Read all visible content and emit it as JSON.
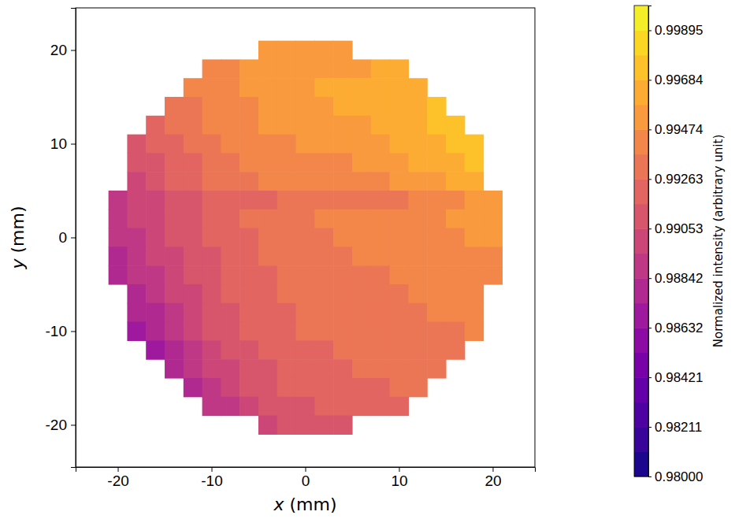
{
  "chart_data": {
    "type": "heatmap",
    "xlabel": "x (mm)",
    "ylabel": "y (mm)",
    "xlim": [
      -24.5,
      24.5
    ],
    "ylim": [
      -24.5,
      24.5
    ],
    "xticks": [
      -20,
      -10,
      0,
      10,
      20
    ],
    "yticks": [
      -20,
      -10,
      0,
      10,
      20
    ],
    "x": [
      -20,
      -18,
      -16,
      -14,
      -12,
      -10,
      -8,
      -6,
      -4,
      -2,
      0,
      2,
      4,
      6,
      8,
      10,
      12,
      14,
      16,
      18,
      20
    ],
    "y": [
      20,
      18,
      16,
      14,
      12,
      10,
      8,
      6,
      4,
      2,
      0,
      -2,
      -4,
      -6,
      -8,
      -10,
      -12,
      -14,
      -16,
      -18,
      -20
    ],
    "z": [
      [
        null,
        null,
        null,
        null,
        null,
        null,
        null,
        null,
        0.995,
        0.9952,
        0.9953,
        0.9954,
        0.9955,
        null,
        null,
        null,
        null,
        null,
        null,
        null,
        null
      ],
      [
        null,
        null,
        null,
        null,
        null,
        0.9943,
        0.9946,
        0.9948,
        0.995,
        0.9952,
        0.9953,
        0.9954,
        0.9955,
        0.9957,
        0.9958,
        0.996,
        null,
        null,
        null,
        null,
        null
      ],
      [
        null,
        null,
        null,
        null,
        0.994,
        0.9944,
        0.9947,
        0.995,
        0.9952,
        0.9955,
        0.9957,
        0.9958,
        0.9959,
        0.996,
        0.9962,
        0.9964,
        0.9966,
        null,
        null,
        null,
        null
      ],
      [
        null,
        null,
        null,
        0.993,
        0.9935,
        0.994,
        0.9944,
        0.9947,
        0.995,
        0.9953,
        0.9955,
        0.9957,
        0.9958,
        0.996,
        0.9962,
        0.9964,
        0.9968,
        0.997,
        null,
        null,
        null
      ],
      [
        null,
        null,
        0.9925,
        0.993,
        0.9934,
        0.9938,
        0.9942,
        0.9945,
        0.9948,
        0.995,
        0.9952,
        0.9954,
        0.9955,
        0.9957,
        0.9958,
        0.9961,
        0.9964,
        0.997,
        0.9975,
        null,
        null
      ],
      [
        null,
        0.9915,
        0.992,
        0.9926,
        0.9931,
        0.9935,
        0.9938,
        0.9941,
        0.9944,
        0.9947,
        0.9949,
        0.995,
        0.9952,
        0.9953,
        0.9955,
        0.9958,
        0.9962,
        0.9967,
        0.9972,
        0.9978,
        null
      ],
      [
        null,
        0.991,
        0.9915,
        0.9921,
        0.9926,
        0.993,
        0.9934,
        0.9937,
        0.994,
        0.9942,
        0.9944,
        0.9946,
        0.9947,
        0.9949,
        0.9951,
        0.9954,
        0.9958,
        0.9963,
        0.9968,
        0.9975,
        null
      ],
      [
        null,
        0.9905,
        0.9912,
        0.9918,
        0.9923,
        0.9927,
        0.9931,
        0.9934,
        0.9937,
        0.9939,
        0.9941,
        0.9942,
        0.9944,
        0.9945,
        0.9947,
        0.995,
        0.9953,
        0.9957,
        0.9962,
        0.9968,
        null
      ],
      [
        0.989,
        0.9896,
        0.9902,
        0.9908,
        0.9913,
        0.9917,
        0.992,
        0.9923,
        0.9925,
        0.9927,
        0.9928,
        0.9929,
        0.993,
        0.9932,
        0.9933,
        0.9935,
        0.9938,
        0.9941,
        0.9945,
        0.995,
        0.9955
      ],
      [
        0.9888,
        0.9895,
        0.9902,
        0.9909,
        0.9915,
        0.992,
        0.9924,
        0.9928,
        0.9931,
        0.9934,
        0.9936,
        0.9938,
        0.9939,
        0.9941,
        0.9942,
        0.9943,
        0.9945,
        0.9947,
        0.995,
        0.9953,
        0.9956
      ],
      [
        0.9885,
        0.9892,
        0.9899,
        0.9906,
        0.9912,
        0.9917,
        0.9922,
        0.9926,
        0.9929,
        0.9932,
        0.9934,
        0.9936,
        0.9938,
        0.9939,
        0.994,
        0.9941,
        0.9942,
        0.9944,
        0.9946,
        0.9948,
        0.995
      ],
      [
        0.9882,
        0.9889,
        0.9896,
        0.9903,
        0.991,
        0.9915,
        0.992,
        0.9924,
        0.9927,
        0.993,
        0.9932,
        0.9934,
        0.9936,
        0.9937,
        0.9938,
        0.9939,
        0.994,
        0.9941,
        0.9943,
        0.9945,
        0.9947
      ],
      [
        0.9878,
        0.9885,
        0.9892,
        0.99,
        0.9907,
        0.9913,
        0.9918,
        0.9922,
        0.9925,
        0.9928,
        0.993,
        0.9932,
        0.9934,
        0.9935,
        0.9936,
        0.9937,
        0.9938,
        0.9939,
        0.994,
        0.9942,
        0.9944
      ],
      [
        null,
        0.988,
        0.9888,
        0.9896,
        0.9904,
        0.9911,
        0.9916,
        0.992,
        0.9924,
        0.9927,
        0.9929,
        0.9931,
        0.9933,
        0.9934,
        0.9935,
        0.9936,
        0.9937,
        0.9938,
        0.9939,
        0.994,
        null
      ],
      [
        null,
        0.9876,
        0.9884,
        0.9893,
        0.9901,
        0.9909,
        0.9915,
        0.9919,
        0.9923,
        0.9926,
        0.9928,
        0.993,
        0.9932,
        0.9933,
        0.9934,
        0.9935,
        0.9936,
        0.9937,
        0.9938,
        0.9939,
        null
      ],
      [
        null,
        0.9872,
        0.988,
        0.9889,
        0.9898,
        0.9906,
        0.9912,
        0.9917,
        0.9921,
        0.9924,
        0.9927,
        0.9929,
        0.9931,
        0.9932,
        0.9933,
        0.9934,
        0.9935,
        0.9936,
        0.9936,
        0.9937,
        null
      ],
      [
        null,
        null,
        0.987,
        0.988,
        0.989,
        0.9899,
        0.9906,
        0.9912,
        0.9917,
        0.9921,
        0.9924,
        0.9926,
        0.9928,
        0.993,
        0.9931,
        0.9932,
        0.9933,
        0.9934,
        0.9934,
        null,
        null
      ],
      [
        null,
        null,
        null,
        0.9875,
        0.9886,
        0.9896,
        0.9904,
        0.991,
        0.9915,
        0.9919,
        0.9922,
        0.9924,
        0.9926,
        0.9928,
        0.9929,
        0.993,
        0.993,
        0.9931,
        null,
        null,
        null
      ],
      [
        null,
        null,
        null,
        null,
        0.988,
        0.989,
        0.9899,
        0.9906,
        0.9912,
        0.9916,
        0.9919,
        0.9921,
        0.9923,
        0.9925,
        0.9926,
        0.9927,
        0.9928,
        null,
        null,
        null,
        null
      ],
      [
        null,
        null,
        null,
        null,
        null,
        0.9885,
        0.9893,
        0.99,
        0.9906,
        0.9911,
        0.9914,
        0.9917,
        0.9919,
        0.9921,
        0.9922,
        0.9923,
        null,
        null,
        null,
        null,
        null
      ],
      [
        null,
        null,
        null,
        null,
        null,
        null,
        null,
        null,
        0.9905,
        0.9908,
        0.991,
        0.9912,
        0.9914,
        null,
        null,
        null,
        null,
        null,
        null,
        null,
        null
      ]
    ],
    "colorbar_label": "Normalized intensity (arbitrary unit)",
    "colorbar_range": [
      0.98,
      1.0
    ],
    "colorbar_ticks": [
      {
        "value": 0.98,
        "label": "0.98000"
      },
      {
        "value": 0.9821053,
        "label": "0.98211"
      },
      {
        "value": 0.9842105,
        "label": "0.98421"
      },
      {
        "value": 0.9863158,
        "label": "0.98632"
      },
      {
        "value": 0.9884211,
        "label": "0.98842"
      },
      {
        "value": 0.9905263,
        "label": "0.99053"
      },
      {
        "value": 0.9926316,
        "label": "0.99263"
      },
      {
        "value": 0.9947368,
        "label": "0.99474"
      },
      {
        "value": 0.9968421,
        "label": "0.99684"
      },
      {
        "value": 0.9989474,
        "label": "0.99895"
      }
    ]
  }
}
